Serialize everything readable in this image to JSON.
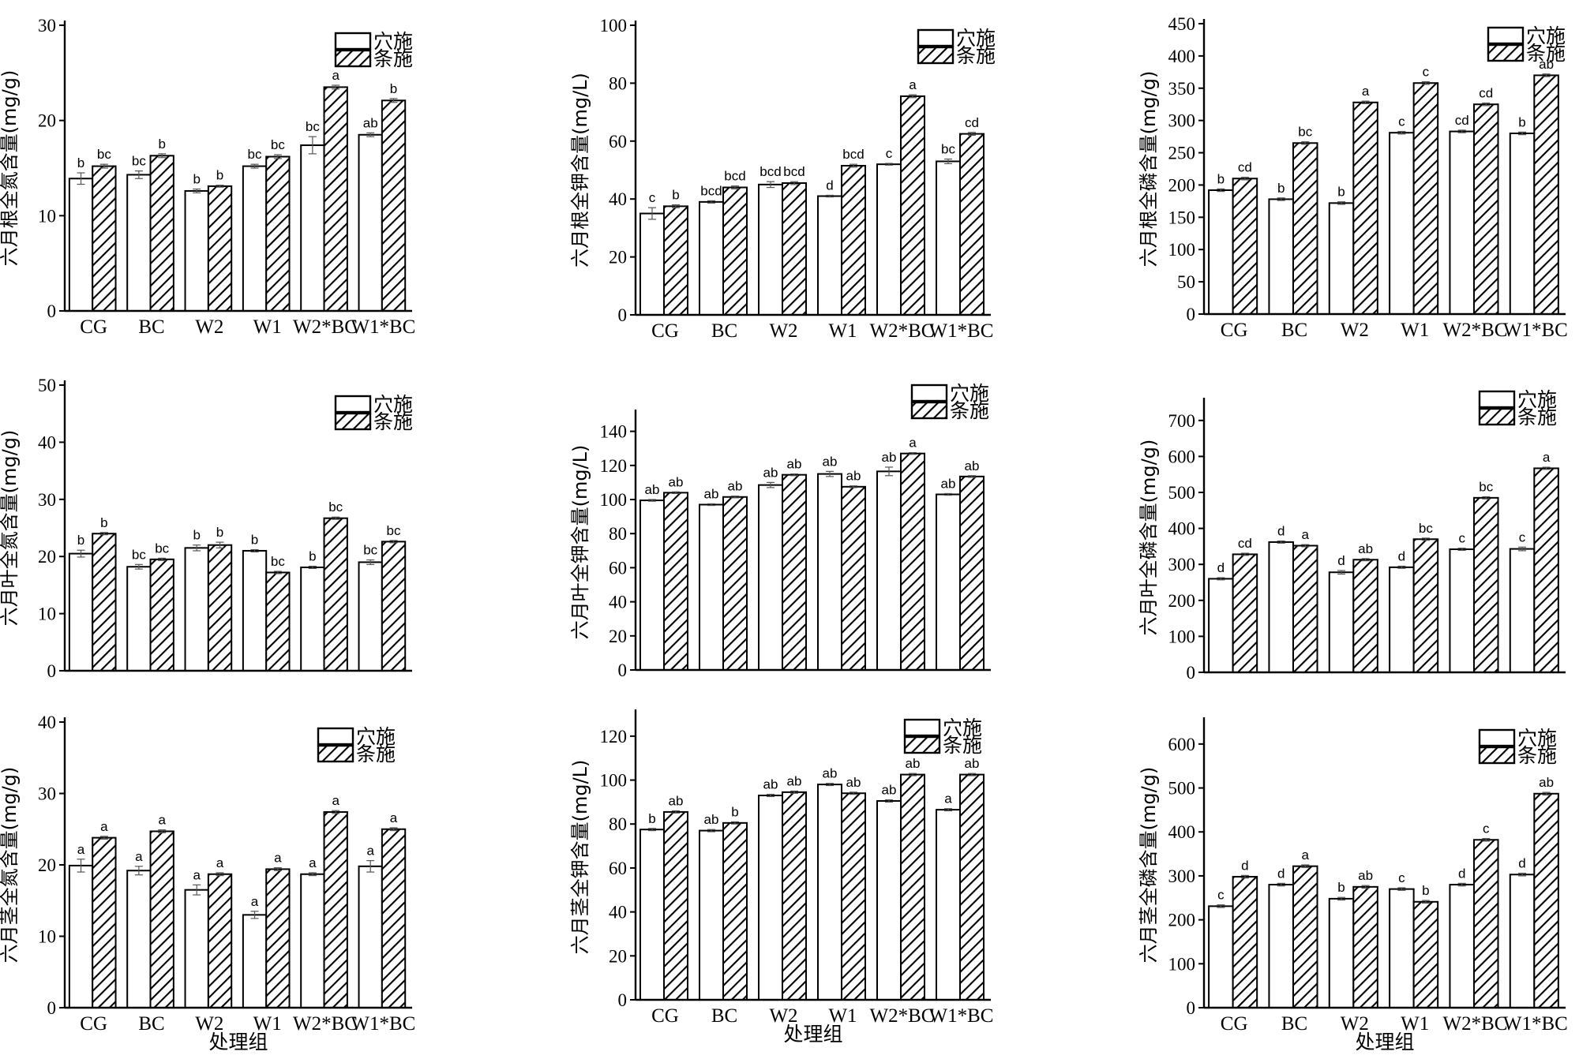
{
  "series_names": [
    "穴施",
    "条施"
  ],
  "chart_data": [
    {
      "type": "bar",
      "ylabel": "六月根全氮含量(mg/g)",
      "xlabel": "",
      "categories": [
        "CG",
        "BC",
        "W2",
        "W1",
        "W2*BC",
        "W1*BC"
      ],
      "ylim": [
        0,
        30
      ],
      "yticks": [
        0,
        10,
        20,
        30
      ],
      "series": [
        {
          "name": "穴施",
          "pattern": "white",
          "values": [
            13.9,
            14.3,
            12.6,
            15.2,
            17.4,
            18.5
          ],
          "errors": [
            0.6,
            0.4,
            0.2,
            0.2,
            0.9,
            0.2
          ],
          "labels": [
            "b",
            "bc",
            "b",
            "bc",
            "bc",
            "ab"
          ]
        },
        {
          "name": "条施",
          "pattern": "hatch",
          "values": [
            15.2,
            16.3,
            13.1,
            16.2,
            23.5,
            22.1
          ],
          "errors": [
            0.2,
            0.2,
            0.1,
            0.2,
            0.2,
            0.2
          ],
          "labels": [
            "bc",
            "b",
            "b",
            "bc",
            "a",
            "b"
          ]
        }
      ],
      "legend": "top-right"
    },
    {
      "type": "bar",
      "ylabel": "六月根全钾含量(mg/L)",
      "xlabel": "",
      "categories": [
        "CG",
        "BC",
        "W2",
        "W1",
        "W2*BC",
        "W1*BC"
      ],
      "ylim": [
        0,
        100
      ],
      "yticks": [
        0,
        20,
        40,
        60,
        80,
        100
      ],
      "series": [
        {
          "name": "穴施",
          "pattern": "white",
          "values": [
            35,
            39,
            45,
            41,
            52,
            53
          ],
          "errors": [
            2.0,
            0.4,
            1.0,
            0.3,
            0.3,
            0.8
          ],
          "labels": [
            "c",
            "bcd",
            "bcd",
            "d",
            "c",
            "bc"
          ]
        },
        {
          "name": "条施",
          "pattern": "hatch",
          "values": [
            37.5,
            44,
            45.5,
            51.5,
            75.5,
            62.5
          ],
          "errors": [
            0.5,
            0.5,
            0.5,
            0.5,
            0.5,
            0.5
          ],
          "labels": [
            "b",
            "bcd",
            "bcd",
            "bcd",
            "a",
            "cd"
          ]
        }
      ],
      "legend": "top-right"
    },
    {
      "type": "bar",
      "ylabel": "六月根全磷含量(mg/g)",
      "xlabel": "",
      "categories": [
        "CG",
        "BC",
        "W2",
        "W1",
        "W2*BC",
        "W1*BC"
      ],
      "ylim": [
        0,
        450
      ],
      "yticks": [
        0,
        50,
        100,
        150,
        200,
        250,
        300,
        350,
        400,
        450
      ],
      "series": [
        {
          "name": "穴施",
          "pattern": "white",
          "values": [
            192,
            178,
            172,
            281,
            283,
            280
          ],
          "errors": [
            2,
            2,
            2,
            2,
            2,
            2
          ],
          "labels": [
            "b",
            "b",
            "b",
            "c",
            "cd",
            "b"
          ]
        },
        {
          "name": "条施",
          "pattern": "hatch",
          "values": [
            210,
            265,
            328,
            358,
            325,
            370
          ],
          "errors": [
            2,
            2,
            2,
            2,
            2,
            2
          ],
          "labels": [
            "cd",
            "bc",
            "a",
            "c",
            "cd",
            "ab"
          ]
        }
      ],
      "legend": "top-right"
    },
    {
      "type": "bar",
      "ylabel": "六月叶全氮含量(mg/g)",
      "xlabel": "",
      "categories": [
        "",
        "",
        "",
        "",
        "",
        ""
      ],
      "ylim": [
        0,
        50
      ],
      "yticks": [
        0,
        10,
        20,
        30,
        40,
        50
      ],
      "series": [
        {
          "name": "穴施",
          "pattern": "white",
          "values": [
            20.5,
            18.2,
            21.5,
            21,
            18.1,
            19
          ],
          "errors": [
            0.6,
            0.4,
            0.5,
            0.2,
            0.2,
            0.4
          ],
          "labels": [
            "b",
            "bc",
            "b",
            "b",
            "b",
            "bc"
          ]
        },
        {
          "name": "条施",
          "pattern": "hatch",
          "values": [
            24,
            19.5,
            22,
            17.2,
            26.7,
            22.6
          ],
          "errors": [
            0.2,
            0.2,
            0.5,
            0.2,
            0.2,
            0.2
          ],
          "labels": [
            "b",
            "bc",
            "b",
            "bc",
            "bc",
            "bc"
          ]
        }
      ],
      "legend": "top-right"
    },
    {
      "type": "bar",
      "ylabel": "六月叶全钾含量(mg/L)",
      "xlabel": "",
      "categories": [
        "",
        "",
        "",
        "",
        "",
        ""
      ],
      "ylim": [
        0,
        150
      ],
      "yticks": [
        0,
        20,
        40,
        60,
        80,
        100,
        120,
        140
      ],
      "series": [
        {
          "name": "穴施",
          "pattern": "white",
          "values": [
            99.5,
            97,
            108.5,
            115,
            116.5,
            103
          ],
          "errors": [
            0.5,
            0.5,
            1.5,
            1.5,
            2.5,
            0.5
          ],
          "labels": [
            "ab",
            "ab",
            "ab",
            "ab",
            "ab",
            "ab"
          ]
        },
        {
          "name": "条施",
          "pattern": "hatch",
          "values": [
            104,
            101.5,
            114.5,
            107.5,
            127,
            113.5
          ],
          "errors": [
            0.5,
            0.5,
            0.5,
            0.5,
            0.5,
            0.5
          ],
          "labels": [
            "ab",
            "ab",
            "ab",
            "ab",
            "a",
            "ab"
          ]
        }
      ],
      "legend": "top-right"
    },
    {
      "type": "bar",
      "ylabel": "六月叶全磷含量(mg/g)",
      "xlabel": "",
      "categories": [
        "",
        "",
        "",
        "",
        "",
        ""
      ],
      "ylim": [
        0,
        750
      ],
      "yticks": [
        0,
        100,
        200,
        300,
        400,
        500,
        600,
        700
      ],
      "series": [
        {
          "name": "穴施",
          "pattern": "white",
          "values": [
            260,
            362,
            278,
            292,
            342,
            343
          ],
          "errors": [
            3,
            3,
            5,
            3,
            3,
            5
          ],
          "labels": [
            "d",
            "d",
            "d",
            "d",
            "c",
            "c"
          ]
        },
        {
          "name": "条施",
          "pattern": "hatch",
          "values": [
            328,
            352,
            313,
            370,
            485,
            567
          ],
          "errors": [
            3,
            3,
            3,
            3,
            3,
            3
          ],
          "labels": [
            "cd",
            "a",
            "ab",
            "bc",
            "bc",
            "a"
          ]
        }
      ],
      "legend": "top-right"
    },
    {
      "type": "bar",
      "ylabel": "六月茎全氮含量(mg/g)",
      "xlabel": "处理组",
      "categories": [
        "CG",
        "BC",
        "W2",
        "W1",
        "W2*BC",
        "W1*BC"
      ],
      "ylim": [
        0,
        40
      ],
      "yticks": [
        0,
        10,
        20,
        30,
        40
      ],
      "series": [
        {
          "name": "穴施",
          "pattern": "white",
          "values": [
            19.9,
            19.2,
            16.5,
            13,
            18.7,
            19.8
          ],
          "errors": [
            0.9,
            0.6,
            0.7,
            0.5,
            0.2,
            0.8
          ],
          "labels": [
            "a",
            "a",
            "a",
            "a",
            "a",
            "a"
          ]
        },
        {
          "name": "条施",
          "pattern": "hatch",
          "values": [
            23.8,
            24.7,
            18.7,
            19.4,
            27.4,
            25
          ],
          "errors": [
            0.2,
            0.2,
            0.2,
            0.2,
            0.2,
            0.2
          ],
          "labels": [
            "a",
            "a",
            "a",
            "a",
            "a",
            "a"
          ]
        }
      ],
      "legend": "top-right"
    },
    {
      "type": "bar",
      "ylabel": "六月茎全钾含量(mg/L)",
      "xlabel": "处理组",
      "categories": [
        "CG",
        "BC",
        "W2",
        "W1",
        "W2*BC",
        "W1*BC"
      ],
      "ylim": [
        0,
        130
      ],
      "yticks": [
        0,
        20,
        40,
        60,
        80,
        100,
        120
      ],
      "series": [
        {
          "name": "穴施",
          "pattern": "white",
          "values": [
            77.5,
            77,
            93,
            98,
            90.5,
            86.5
          ],
          "errors": [
            0.5,
            0.5,
            0.5,
            0.5,
            0.5,
            0.5
          ],
          "labels": [
            "b",
            "ab",
            "ab",
            "ab",
            "ab",
            "a"
          ]
        },
        {
          "name": "条施",
          "pattern": "hatch",
          "values": [
            85.5,
            80.5,
            94.5,
            94,
            102.5,
            102.5
          ],
          "errors": [
            0.5,
            0.5,
            0.5,
            0.5,
            0.5,
            0.5
          ],
          "labels": [
            "ab",
            "b",
            "ab",
            "ab",
            "ab",
            "ab"
          ]
        }
      ],
      "legend": "top-right"
    },
    {
      "type": "bar",
      "ylabel": "六月茎全磷含量(mg/g)",
      "xlabel": "处理组",
      "categories": [
        "CG",
        "BC",
        "W2",
        "W1",
        "W2*BC",
        "W1*BC"
      ],
      "ylim": [
        0,
        650
      ],
      "yticks": [
        0,
        100,
        200,
        300,
        400,
        500,
        600
      ],
      "series": [
        {
          "name": "穴施",
          "pattern": "white",
          "values": [
            231,
            280,
            248,
            270,
            280,
            303
          ],
          "errors": [
            3,
            3,
            3,
            3,
            3,
            3
          ],
          "labels": [
            "c",
            "d",
            "b",
            "c",
            "d",
            "d"
          ]
        },
        {
          "name": "条施",
          "pattern": "hatch",
          "values": [
            298,
            322,
            275,
            241,
            382,
            487
          ],
          "errors": [
            3,
            3,
            3,
            3,
            3,
            3
          ],
          "labels": [
            "d",
            "a",
            "ab",
            "b",
            "c",
            "ab"
          ]
        }
      ],
      "legend": "top-right"
    }
  ]
}
